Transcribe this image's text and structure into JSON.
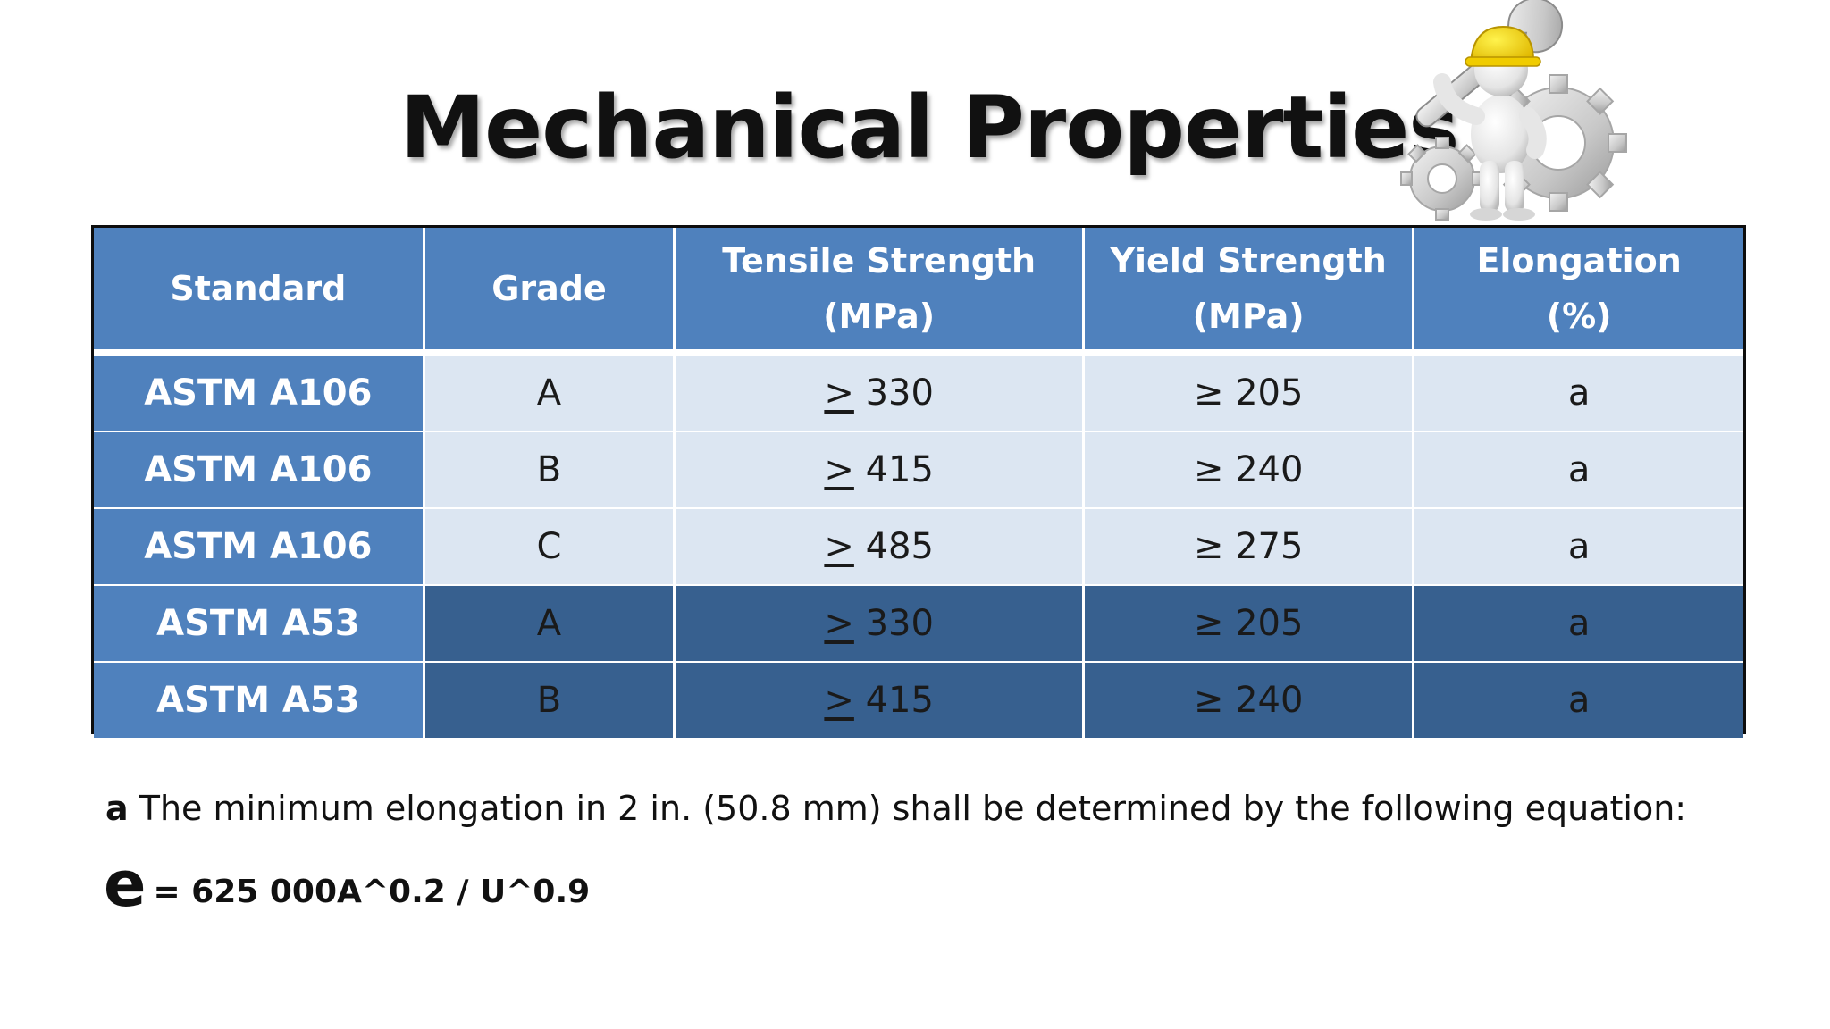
{
  "slide": {
    "title": "Mechanical Properties"
  },
  "table": {
    "headers": [
      {
        "line1": "Standard",
        "line2": ""
      },
      {
        "line1": "Grade",
        "line2": ""
      },
      {
        "line1": "Tensile Strength",
        "line2": "(MPa)"
      },
      {
        "line1": "Yield Strength",
        "line2": "(MPa)"
      },
      {
        "line1": "Elongation",
        "line2": "(%)"
      }
    ],
    "rows": [
      {
        "standard": "ASTM A106",
        "grade": "A",
        "tensile_sym": ">",
        "tensile": " 330",
        "yield": "≥ 205",
        "elongation": "a",
        "shade": "light"
      },
      {
        "standard": "ASTM A106",
        "grade": "B",
        "tensile_sym": ">",
        "tensile": " 415",
        "yield": "≥ 240",
        "elongation": "a",
        "shade": "light"
      },
      {
        "standard": "ASTM A106",
        "grade": "C",
        "tensile_sym": ">",
        "tensile": " 485",
        "yield": "≥ 275",
        "elongation": "a",
        "shade": "light"
      },
      {
        "standard": "ASTM A53",
        "grade": "A",
        "tensile_sym": ">",
        "tensile": " 330",
        "yield": "≥ 205",
        "elongation": "a",
        "shade": "dark"
      },
      {
        "standard": "ASTM A53",
        "grade": "B",
        "tensile_sym": ">",
        "tensile": " 415",
        "yield": "≥ 240",
        "elongation": "a",
        "shade": "dark"
      }
    ]
  },
  "footnote": {
    "marker": "a",
    "text": " The minimum elongation in 2 in. (50.8 mm) shall be determined by the following equation:"
  },
  "equation": {
    "symbol": "e",
    "expression": "= 625 000A^0.2 / U^0.9"
  },
  "colors": {
    "header_blue": "#4f81bd",
    "light_row": "#dce6f2",
    "dark_row": "#37608f"
  },
  "icons": {
    "mascot": "worker-with-wrench-and-gears-icon"
  }
}
